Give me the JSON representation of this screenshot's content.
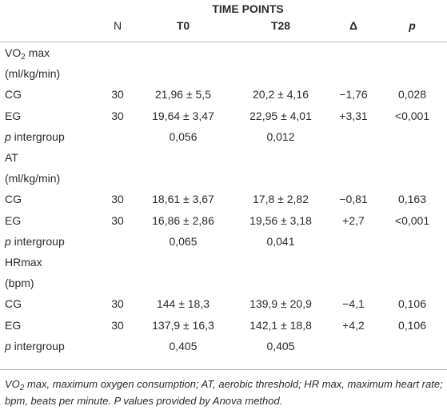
{
  "header": {
    "time_points": "TIME POINTS",
    "col_n": "N",
    "col_t0": "T0",
    "col_t28": "T28",
    "col_delta": "Δ",
    "col_p": "p"
  },
  "sections": [
    {
      "label_pre": "VO",
      "label_sub": "2",
      "label_post": " max",
      "unit": "(ml/kg/min)",
      "rows": [
        {
          "group": "CG",
          "n": "30",
          "t0": "21,96 ± 5,5",
          "t28": "20,2 ± 4,16",
          "delta": "−1,76",
          "p": "0,028"
        },
        {
          "group": "EG",
          "n": "30",
          "t0": "19,64 ± 3,47",
          "t28": "22,95 ± 4,01",
          "delta": "+3,31",
          "p": "<0,001"
        }
      ],
      "intergroup": {
        "p_label": "p",
        "rest": " intergroup",
        "t0": "0,056",
        "t28": "0,012"
      }
    },
    {
      "label_pre": "AT",
      "unit": "(ml/kg/min)",
      "rows": [
        {
          "group": "CG",
          "n": "30",
          "t0": "18,61 ± 3,67",
          "t28": "17,8 ± 2,82",
          "delta": "−0,81",
          "p": "0,163"
        },
        {
          "group": "EG",
          "n": "30",
          "t0": "16,86 ± 2,86",
          "t28": "19,56 ± 3,18",
          "delta": "+2,7",
          "p": "<0,001"
        }
      ],
      "intergroup": {
        "p_label": "p",
        "rest": " intergroup",
        "t0": "0,065",
        "t28": "0,041"
      }
    },
    {
      "label_pre": "HRmax",
      "unit": "(bpm)",
      "rows": [
        {
          "group": "CG",
          "n": "30",
          "t0": "144 ± 18,3",
          "t28": "139,9 ± 20,9",
          "delta": "−4,1",
          "p": "0,106"
        },
        {
          "group": "EG",
          "n": "30",
          "t0": "137,9 ± 16,3",
          "t28": "142,1 ± 18,8",
          "delta": "+4,2",
          "p": "0,106"
        }
      ],
      "intergroup": {
        "p_label": "p",
        "rest": " intergroup",
        "t0": "0,405",
        "t28": "0,405"
      }
    }
  ],
  "footnote": {
    "pre": "VO",
    "sub": "2",
    "post": " max, maximum oxygen consumption; AT, aerobic threshold; HR max, maximum heart rate; bpm, beats per minute. P values provided by Anova method."
  }
}
